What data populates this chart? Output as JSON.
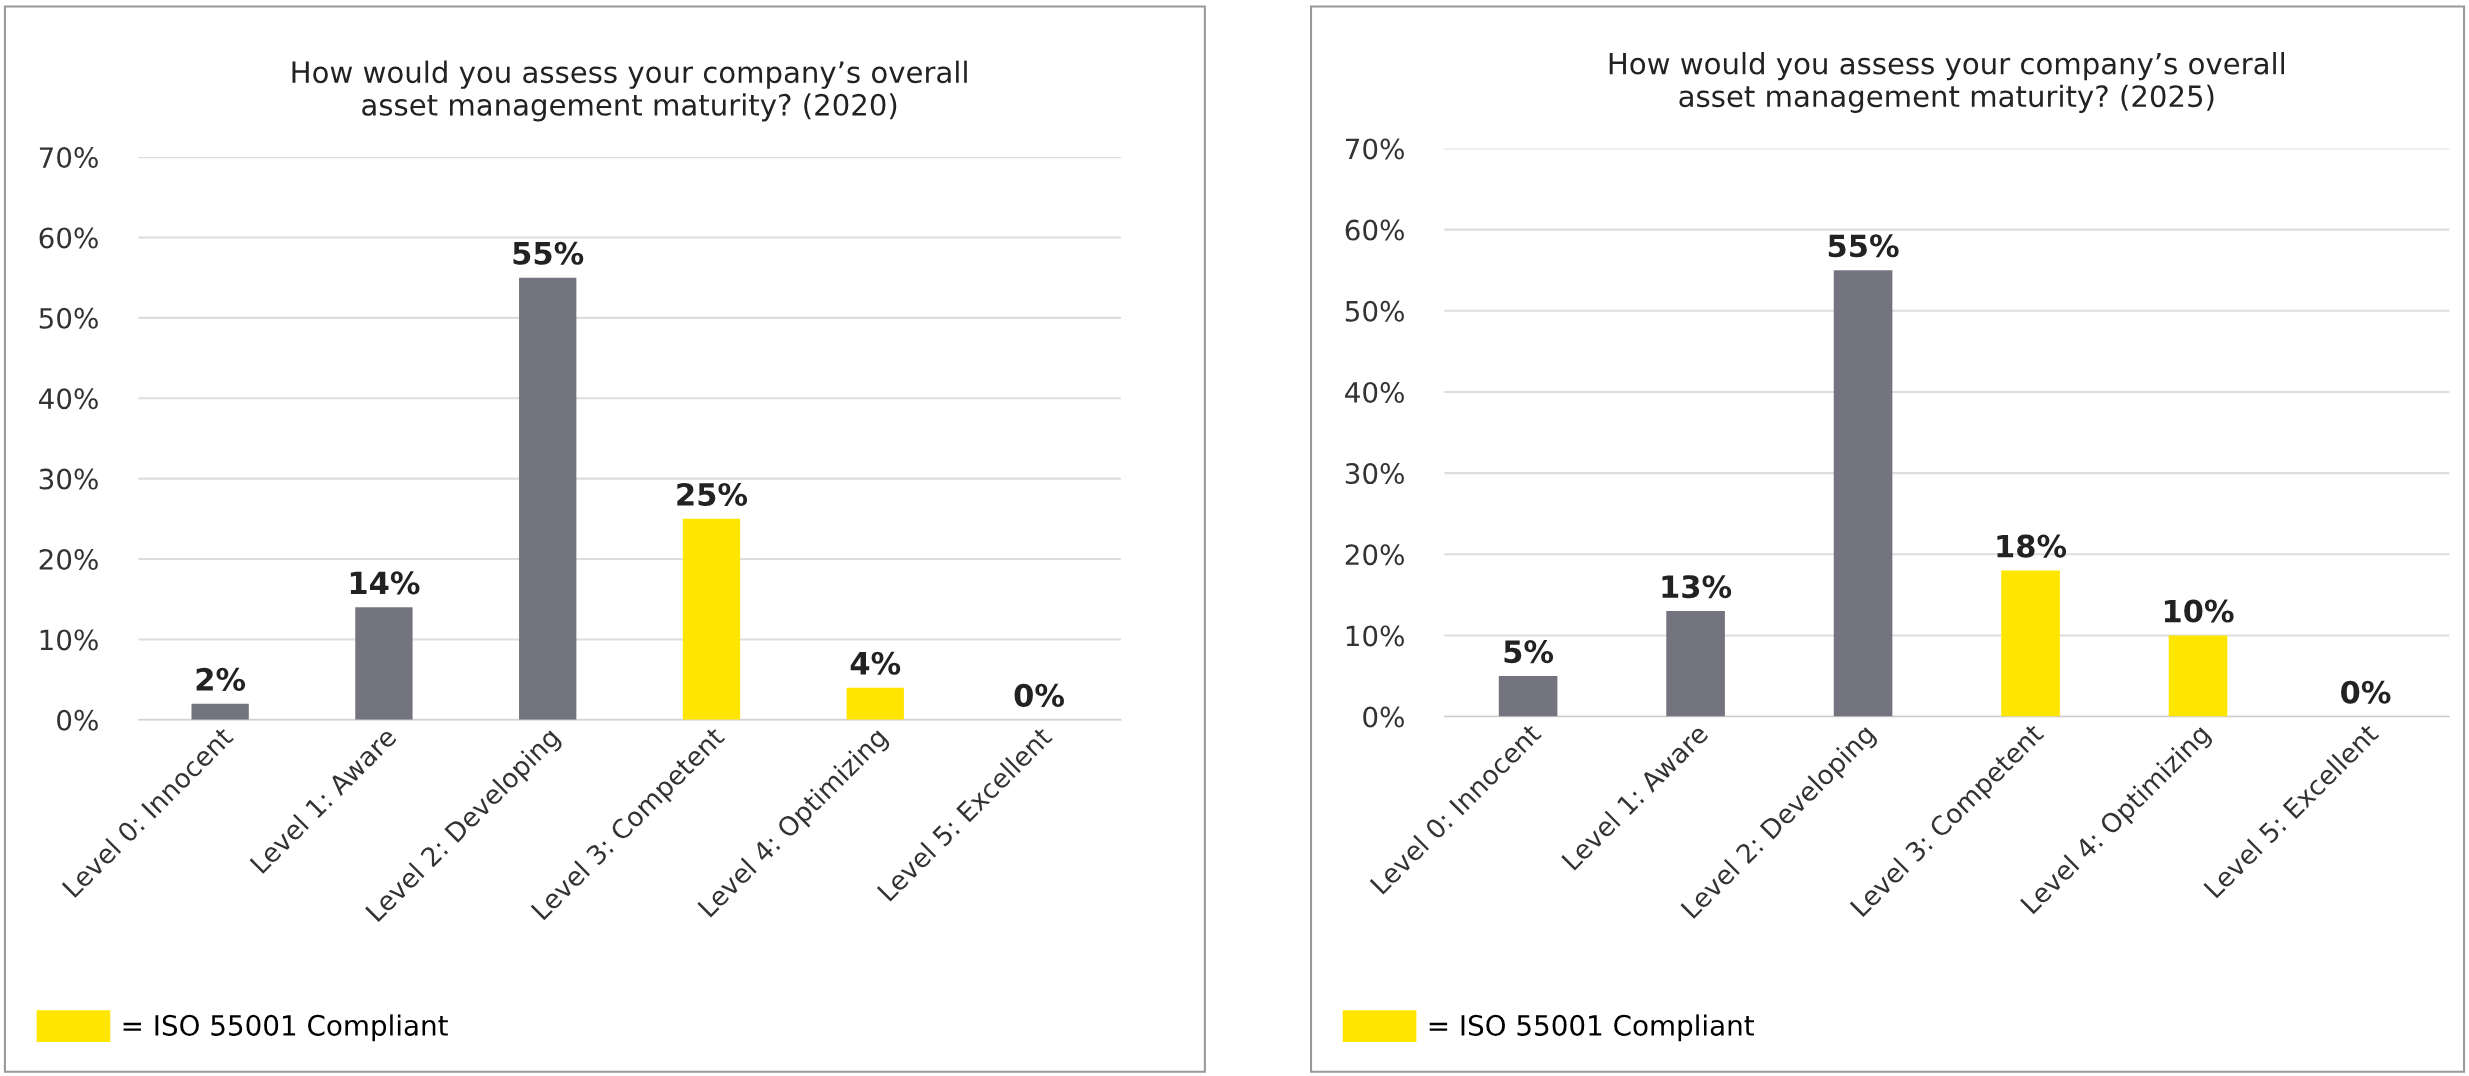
{
  "chart_data": [
    {
      "type": "bar",
      "title": "How would you assess your company’s overall\nasset management maturity? (2020)",
      "categories": [
        "Level 0: Innocent",
        "Level 1: Aware",
        "Level 2: Developing",
        "Level 3: Competent",
        "Level 4: Optimizing",
        "Level 5: Excellent"
      ],
      "series": [
        {
          "color": "#747480",
          "values": [
            2,
            14,
            55,
            null,
            null,
            null
          ],
          "value_labels": [
            "2%",
            "14%",
            "55%",
            null,
            null,
            null
          ]
        },
        {
          "name": "= ISO 55001 Compliant",
          "color": "#ffe600",
          "values": [
            null,
            null,
            null,
            25,
            4,
            0
          ],
          "value_labels": [
            null,
            null,
            null,
            "25%",
            "4%",
            "0%"
          ]
        }
      ],
      "ylim": [
        0,
        70
      ],
      "yticks": [
        {
          "value": 0,
          "label": "0%"
        },
        {
          "value": 10,
          "label": "10%"
        },
        {
          "value": 20,
          "label": "20%"
        },
        {
          "value": 30,
          "label": "30%"
        },
        {
          "value": 40,
          "label": "40%"
        },
        {
          "value": 50,
          "label": "50%"
        },
        {
          "value": 60,
          "label": "60%"
        },
        {
          "value": 70,
          "label": "70%"
        }
      ],
      "grid": "y",
      "legend": "bottom left"
    },
    {
      "type": "bar",
      "title": "How would you assess your company’s overall\nasset management maturity? (2025)",
      "categories": [
        "Level 0: Innocent",
        "Level 1: Aware",
        "Level 2: Developing",
        "Level 3: Competent",
        "Level 4: Optimizing",
        "Level 5: Excellent"
      ],
      "series": [
        {
          "color": "#747480",
          "values": [
            5,
            13,
            55,
            null,
            null,
            null
          ],
          "value_labels": [
            "5%",
            "13%",
            "55%",
            null,
            null,
            null
          ]
        },
        {
          "name": "= ISO 55001 Compliant",
          "color": "#ffe600",
          "values": [
            null,
            null,
            null,
            18,
            10,
            0
          ],
          "value_labels": [
            null,
            null,
            null,
            "18%",
            "10%",
            "0%"
          ]
        }
      ],
      "ylim": [
        0,
        70
      ],
      "yticks": [
        {
          "value": 0,
          "label": "0%"
        },
        {
          "value": 10,
          "label": "10%"
        },
        {
          "value": 20,
          "label": "20%"
        },
        {
          "value": 30,
          "label": "30%"
        },
        {
          "value": 40,
          "label": "40%"
        },
        {
          "value": 50,
          "label": "50%"
        },
        {
          "value": 60,
          "label": "60%"
        },
        {
          "value": 70,
          "label": "70%"
        }
      ],
      "grid": "y",
      "legend": "bottom left"
    }
  ]
}
